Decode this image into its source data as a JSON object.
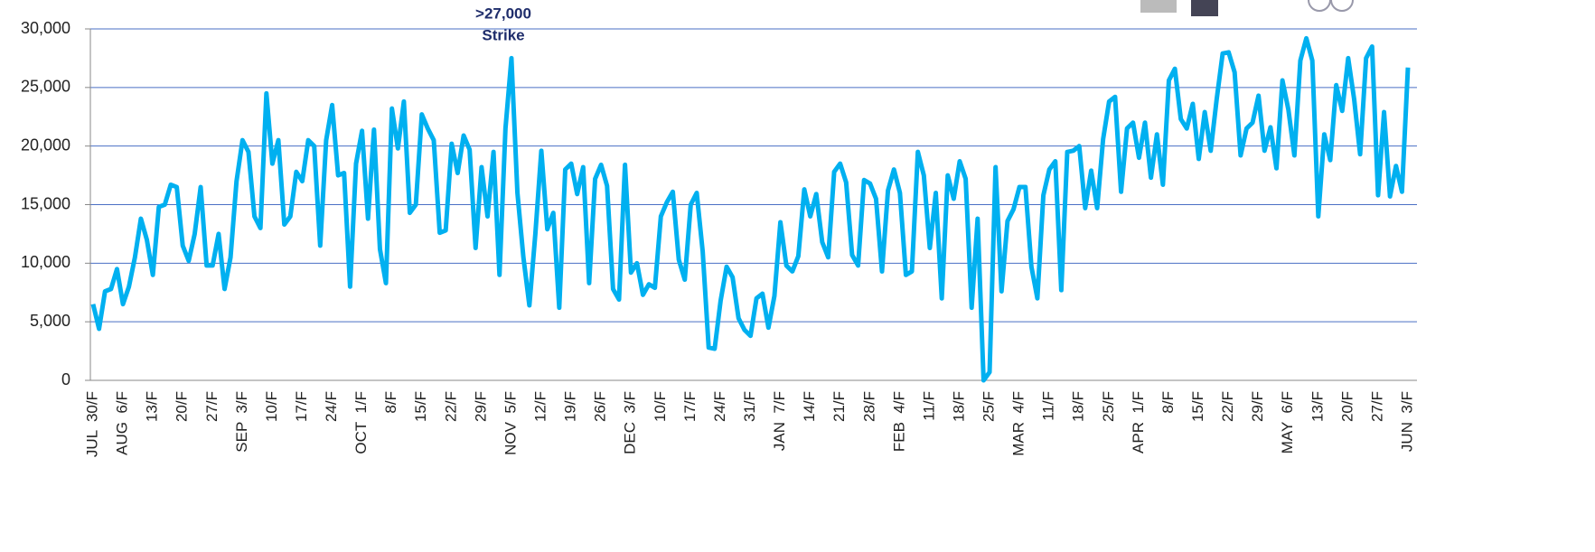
{
  "chart_data": {
    "type": "line",
    "annotation": [
      ">27,000",
      "Strike"
    ],
    "color": "#00b0f0",
    "grid": true,
    "ylim": [
      0,
      30000
    ],
    "yticks": [
      0,
      {
        "value": 5000,
        "label": "5,000"
      },
      {
        "value": 10000,
        "label": "10,000"
      },
      {
        "value": 15000,
        "label": "15,000"
      },
      {
        "value": 20000,
        "label": "20,000"
      },
      {
        "value": 25000,
        "label": "25,000"
      },
      {
        "value": 30000,
        "label": "30,000"
      }
    ],
    "categories": [
      "JUL  30/F",
      null,
      null,
      null,
      null,
      "AUG  6/F",
      null,
      null,
      null,
      null,
      "13/F",
      null,
      null,
      null,
      null,
      "20/F",
      null,
      null,
      null,
      null,
      "27/F",
      null,
      null,
      null,
      null,
      "SEP  3/F",
      null,
      null,
      null,
      null,
      "10/F",
      null,
      null,
      null,
      null,
      "17/F",
      null,
      null,
      null,
      null,
      "24/F",
      null,
      null,
      null,
      null,
      "OCT  1/F",
      null,
      null,
      null,
      null,
      "8/F",
      null,
      null,
      null,
      null,
      "15/F",
      null,
      null,
      null,
      null,
      "22/F",
      null,
      null,
      null,
      null,
      "29/F",
      null,
      null,
      null,
      null,
      "NOV  5/F",
      null,
      null,
      null,
      null,
      "12/F",
      null,
      null,
      null,
      null,
      "19/F",
      null,
      null,
      null,
      null,
      "26/F",
      null,
      null,
      null,
      null,
      "DEC  3/F",
      null,
      null,
      null,
      null,
      "10/F",
      null,
      null,
      null,
      null,
      "17/F",
      null,
      null,
      null,
      null,
      "24/F",
      null,
      null,
      null,
      null,
      "31/F",
      null,
      null,
      null,
      null,
      "JAN  7/F",
      null,
      null,
      null,
      null,
      "14/F",
      null,
      null,
      null,
      null,
      "21/F",
      null,
      null,
      null,
      null,
      "28/F",
      null,
      null,
      null,
      null,
      "FEB  4/F",
      null,
      null,
      null,
      null,
      "11/F",
      null,
      null,
      null,
      null,
      "18/F",
      null,
      null,
      null,
      null,
      "25/F",
      null,
      null,
      null,
      null,
      "MAR  4/F",
      null,
      null,
      null,
      null,
      "11/F",
      null,
      null,
      null,
      null,
      "18/F",
      null,
      null,
      null,
      null,
      "25/F",
      null,
      null,
      null,
      null,
      "APR  1/F",
      null,
      null,
      null,
      null,
      "8/F",
      null,
      null,
      null,
      null,
      "15/F",
      null,
      null,
      null,
      null,
      "22/F",
      null,
      null,
      null,
      null,
      "29/F",
      null,
      null,
      null,
      null,
      "MAY  6/F",
      null,
      null,
      null,
      null,
      "13/F",
      null,
      null,
      null,
      null,
      "20/F",
      null,
      null,
      null,
      null,
      "27/F",
      null,
      null,
      null,
      null,
      "JUN  3/F"
    ],
    "values": [
      6500,
      4400,
      7600,
      7800,
      9500,
      6500,
      8000,
      10500,
      13800,
      12000,
      9000,
      14800,
      15000,
      16700,
      16500,
      11500,
      10200,
      12500,
      16500,
      9800,
      9800,
      12500,
      7800,
      10500,
      17000,
      20500,
      19500,
      14000,
      13000,
      24500,
      18500,
      20500,
      13300,
      14000,
      17800,
      17000,
      20500,
      20000,
      11500,
      20500,
      23500,
      17500,
      17700,
      8000,
      18500,
      21300,
      13800,
      21400,
      11200,
      8300,
      23200,
      19800,
      23800,
      14300,
      15000,
      22700,
      21500,
      20500,
      12600,
      12800,
      20200,
      17700,
      20900,
      19700,
      11300,
      18200,
      14000,
      19500,
      9000,
      21500,
      27500,
      16000,
      10500,
      6400,
      12500,
      19600,
      12900,
      14300,
      6200,
      18000,
      18500,
      15900,
      18200,
      8300,
      17200,
      18400,
      16600,
      7800,
      6900,
      18400,
      9200,
      10000,
      7300,
      8200,
      7900,
      14000,
      15200,
      16100,
      10300,
      8600,
      15000,
      16000,
      11000,
      2800,
      2700,
      6800,
      9700,
      8800,
      5300,
      4300,
      3800,
      7000,
      7400,
      4500,
      7200,
      13500,
      9800,
      9300,
      10600,
      16300,
      14000,
      15900,
      11800,
      10500,
      17800,
      18500,
      16900,
      10700,
      9800,
      17100,
      16800,
      15500,
      9300,
      16200,
      18000,
      16000,
      9000,
      9300,
      19500,
      17500,
      11300,
      16000,
      7000,
      17500,
      15500,
      18700,
      17200,
      6200,
      13800,
      0,
      700,
      18200,
      7600,
      13600,
      14600,
      16500,
      16500,
      9700,
      7000,
      15800,
      18000,
      18700,
      7700,
      19500,
      19600,
      20000,
      14700,
      17900,
      14700,
      20600,
      23800,
      24200,
      16100,
      21500,
      22000,
      19000,
      22000,
      17300,
      21000,
      16700,
      25600,
      26600,
      22300,
      21500,
      23600,
      18900,
      22900,
      19600,
      24000,
      27900,
      28000,
      26300,
      19200,
      21500,
      22000,
      24300,
      19600,
      21600,
      18100,
      25600,
      23100,
      19200,
      27300,
      29200,
      27300,
      14000,
      21000,
      18800,
      25200,
      23000,
      27500,
      24000,
      19300,
      27500,
      28500,
      15800,
      22900,
      15700,
      18300,
      16100,
      26700
    ]
  }
}
